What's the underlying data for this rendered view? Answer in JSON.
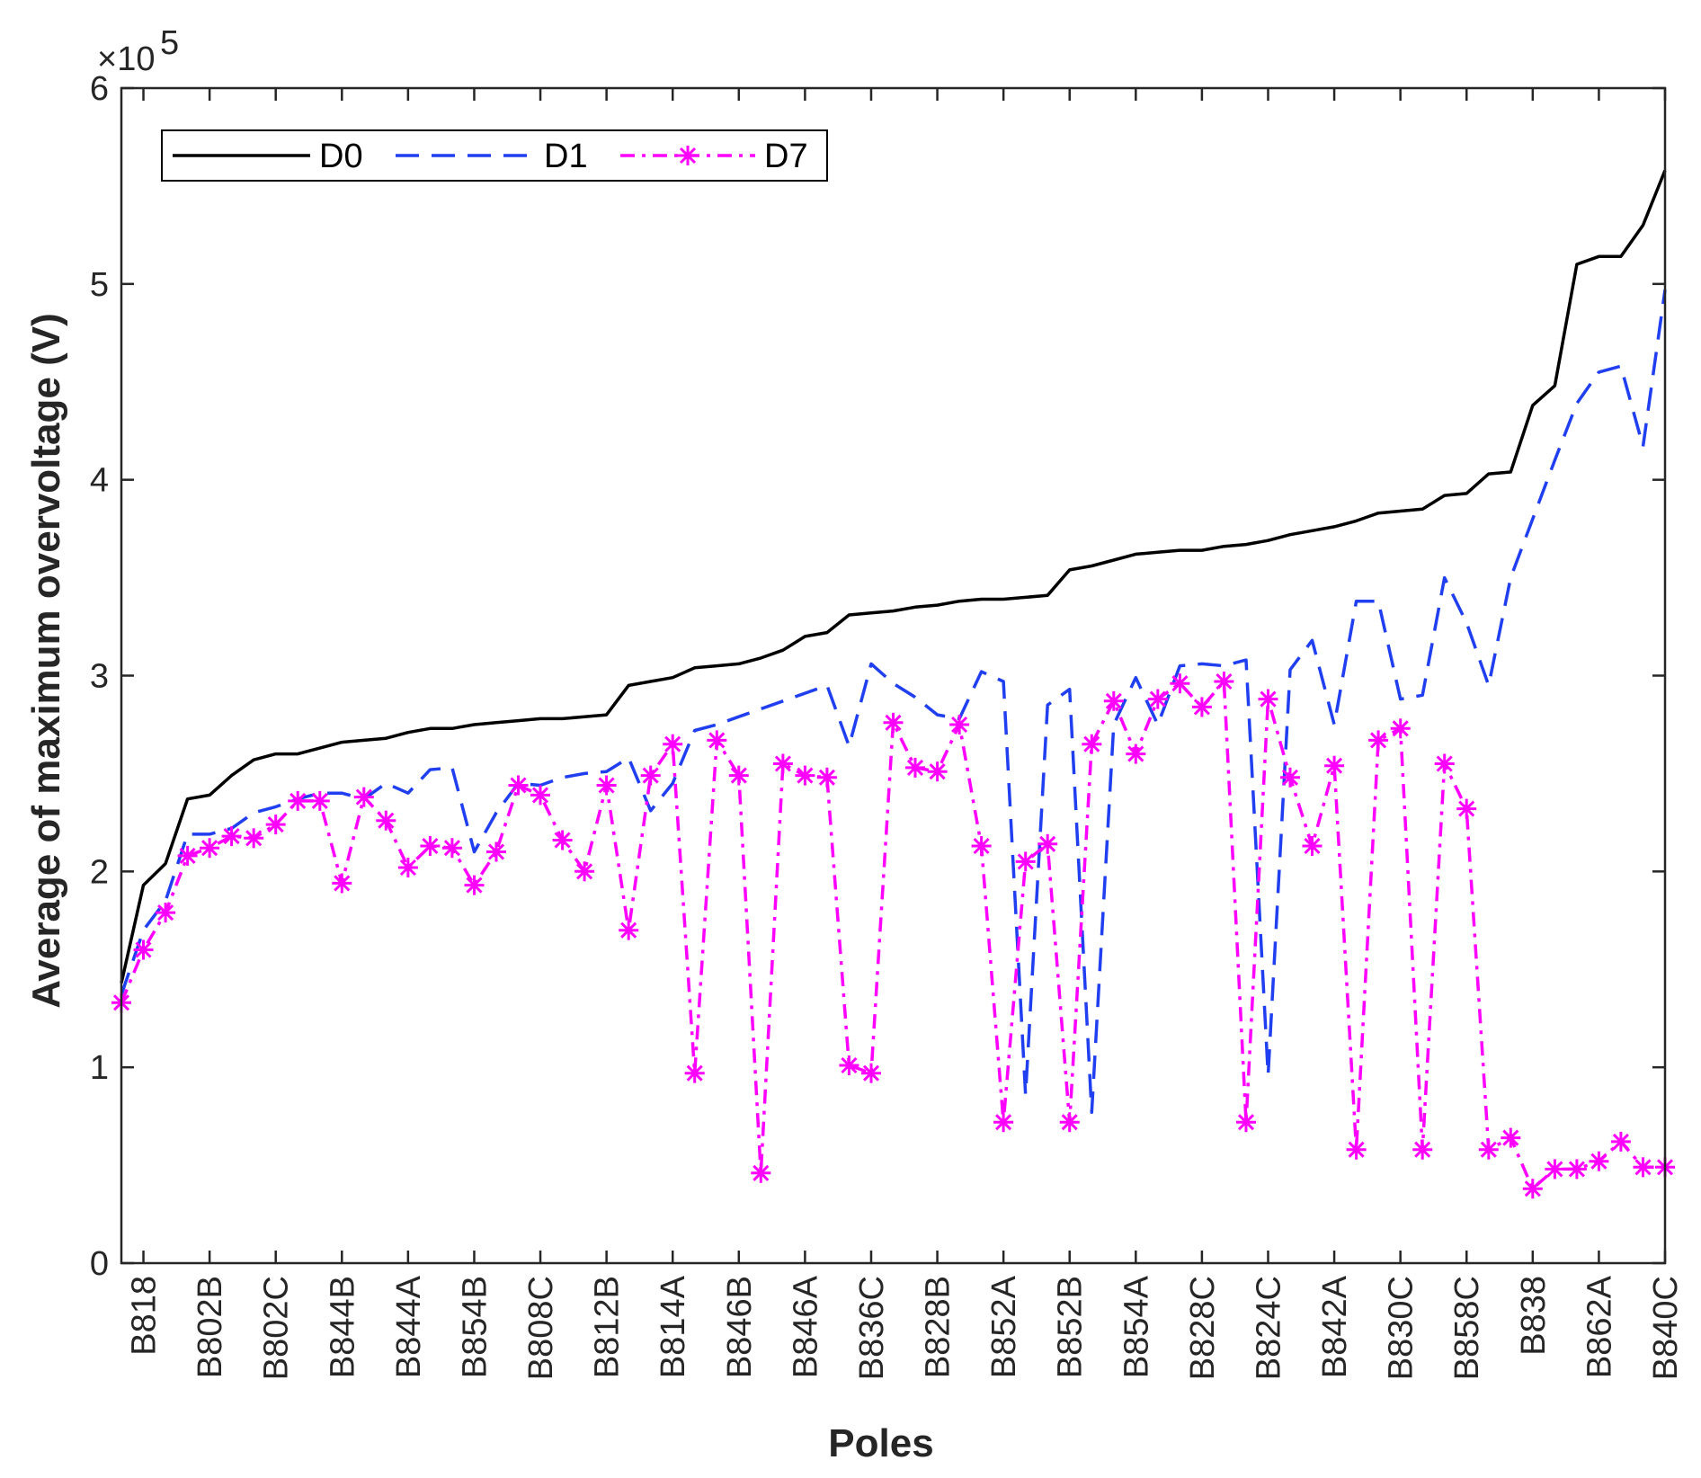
{
  "chart_data": {
    "type": "line",
    "title": "",
    "xlabel": "Poles",
    "ylabel": "Average of maximum overvoltage (V)",
    "y_exponent_label": "×10",
    "y_exponent_power": "5",
    "ylim": [
      0,
      6
    ],
    "yticks": [
      "0",
      "1",
      "2",
      "3",
      "4",
      "5",
      "6"
    ],
    "grid": false,
    "legend_position": "top-left",
    "x_tick_labels": [
      "B818",
      "B802B",
      "B802C",
      "B844B",
      "B844A",
      "B854B",
      "B808C",
      "B812B",
      "B814A",
      "B846B",
      "B846A",
      "B836C",
      "B828B",
      "B852A",
      "B852B",
      "B854A",
      "B828C",
      "B824C",
      "B842A",
      "B830C",
      "B858C",
      "B838",
      "B862A",
      "B840C"
    ],
    "x_tick_positions": [
      2,
      5,
      8,
      11,
      14,
      17,
      20,
      23,
      26,
      29,
      32,
      35,
      38,
      41,
      44,
      47,
      50,
      53,
      56,
      59,
      62,
      65,
      68,
      71
    ],
    "x_min": 1,
    "x_max": 71,
    "series": [
      {
        "name": "D0",
        "color": "#000000",
        "dash": "solid",
        "marker": "none",
        "values": [
          1.43,
          1.93,
          2.04,
          2.37,
          2.39,
          2.49,
          2.57,
          2.6,
          2.6,
          2.63,
          2.66,
          2.67,
          2.68,
          2.71,
          2.73,
          2.73,
          2.75,
          2.76,
          2.77,
          2.78,
          2.78,
          2.79,
          2.8,
          2.95,
          2.97,
          2.99,
          3.04,
          3.05,
          3.06,
          3.09,
          3.13,
          3.2,
          3.22,
          3.31,
          3.32,
          3.33,
          3.35,
          3.36,
          3.38,
          3.39,
          3.39,
          3.4,
          3.41,
          3.54,
          3.56,
          3.59,
          3.62,
          3.63,
          3.64,
          3.64,
          3.66,
          3.67,
          3.69,
          3.72,
          3.74,
          3.76,
          3.79,
          3.83,
          3.84,
          3.85,
          3.92,
          3.93,
          4.03,
          4.04,
          4.38,
          4.48,
          5.1,
          5.14,
          5.14,
          5.3,
          5.58
        ]
      },
      {
        "name": "D1",
        "color": "#1f3ff0",
        "dash": "dashed",
        "marker": "none",
        "values": [
          1.37,
          1.7,
          1.85,
          2.19,
          2.19,
          2.22,
          2.3,
          2.33,
          2.37,
          2.4,
          2.4,
          2.37,
          2.45,
          2.4,
          2.52,
          2.53,
          2.1,
          2.3,
          2.45,
          2.44,
          2.48,
          2.5,
          2.51,
          2.58,
          2.31,
          2.45,
          2.72,
          2.75,
          2.79,
          2.83,
          2.87,
          2.91,
          2.95,
          2.64,
          3.06,
          2.96,
          2.89,
          2.8,
          2.78,
          3.02,
          2.97,
          0.86,
          2.85,
          2.93,
          0.77,
          2.75,
          2.99,
          2.75,
          3.05,
          3.06,
          3.05,
          3.08,
          0.96,
          3.03,
          3.18,
          2.75,
          3.38,
          3.38,
          2.88,
          2.9,
          3.5,
          3.27,
          2.95,
          3.5,
          3.8,
          4.1,
          4.39,
          4.55,
          4.58,
          4.17,
          4.97
        ]
      },
      {
        "name": "D7",
        "color": "#ff00ff",
        "dash": "dashdot",
        "marker": "asterisk",
        "values": [
          1.33,
          1.6,
          1.79,
          2.08,
          2.12,
          2.18,
          2.17,
          2.24,
          2.36,
          2.36,
          1.94,
          2.38,
          2.26,
          2.02,
          2.13,
          2.12,
          1.93,
          2.1,
          2.44,
          2.39,
          2.16,
          2.0,
          2.44,
          1.7,
          2.49,
          2.65,
          0.97,
          2.67,
          2.49,
          0.46,
          2.55,
          2.49,
          2.48,
          1.01,
          0.97,
          2.76,
          2.53,
          2.51,
          2.75,
          2.13,
          0.72,
          2.05,
          2.14,
          0.72,
          2.65,
          2.87,
          2.6,
          2.88,
          2.96,
          2.84,
          2.97,
          0.72,
          2.88,
          2.48,
          2.13,
          2.54,
          0.58,
          2.67,
          2.73,
          0.58,
          2.55,
          2.32,
          0.58,
          0.64,
          0.38,
          0.48,
          0.48,
          0.52,
          0.62,
          0.49,
          0.49
        ]
      }
    ]
  }
}
